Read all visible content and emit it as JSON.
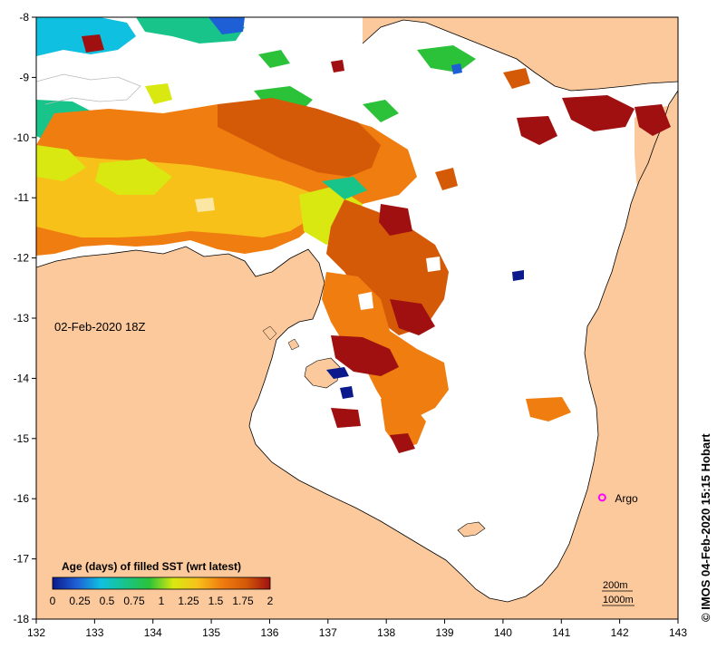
{
  "map": {
    "date_label": "02-Feb-2020 18Z",
    "copyright": "© IMOS 04-Feb-2020 15:15 Hobart",
    "x_ticks": [
      "132",
      "133",
      "134",
      "135",
      "136",
      "137",
      "138",
      "139",
      "140",
      "141",
      "142",
      "143"
    ],
    "y_ticks": [
      "-8",
      "-9",
      "-10",
      "-11",
      "-12",
      "-13",
      "-14",
      "-15",
      "-16",
      "-17",
      "-18"
    ],
    "xlim": [
      132,
      143
    ],
    "ylim": [
      -18,
      -8
    ],
    "argo": {
      "label": "Argo",
      "lon": 141.7,
      "lat": -15.98,
      "color": "#ff00ff"
    },
    "contours": {
      "c200": "200m",
      "c1000": "1000m"
    },
    "land_color": "#fbc99b",
    "colorbar": {
      "title": "Age (days) of filled SST (wrt latest)",
      "labels": [
        "0",
        "0.25",
        "0.5",
        "0.75",
        "1",
        "1.25",
        "1.5",
        "1.75",
        "2"
      ],
      "range": [
        0,
        2
      ],
      "colors": [
        "#0a1a8c",
        "#1f5fd6",
        "#10c0e0",
        "#18c48a",
        "#2bc23a",
        "#d8e810",
        "#f7c11a",
        "#f07d10",
        "#d45a08",
        "#a01010"
      ]
    }
  }
}
